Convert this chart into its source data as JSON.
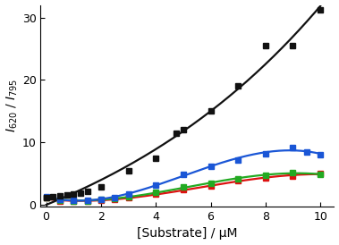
{
  "title": "",
  "xlabel": "[Substrate] / μM",
  "ylabel": "I$_{620}$ / I$_{795}$",
  "xlim": [
    -0.2,
    10.5
  ],
  "ylim": [
    -0.3,
    32
  ],
  "yticks": [
    0,
    10,
    20,
    30
  ],
  "xticks": [
    0,
    2,
    4,
    6,
    8,
    10
  ],
  "black_x": [
    0.0,
    0.25,
    0.5,
    0.75,
    1.0,
    1.25,
    1.5,
    2.0,
    3.0,
    4.0,
    4.75,
    5.0,
    6.0,
    7.0,
    8.0,
    9.0,
    10.0
  ],
  "black_y": [
    1.2,
    1.3,
    1.4,
    1.5,
    1.7,
    1.9,
    2.1,
    2.8,
    5.5,
    7.5,
    11.5,
    12.0,
    15.0,
    19.0,
    25.5,
    25.5,
    31.2
  ],
  "blue_x": [
    0.0,
    0.5,
    1.0,
    1.5,
    2.0,
    2.5,
    3.0,
    4.0,
    5.0,
    6.0,
    7.0,
    8.0,
    9.0,
    9.5,
    10.0
  ],
  "blue_y": [
    1.3,
    0.8,
    0.7,
    0.7,
    0.9,
    1.2,
    1.7,
    3.2,
    4.8,
    6.2,
    7.2,
    8.2,
    9.2,
    8.5,
    8.0
  ],
  "green_x": [
    0.0,
    0.5,
    1.0,
    1.5,
    2.0,
    2.5,
    3.0,
    4.0,
    5.0,
    6.0,
    7.0,
    8.0,
    9.0,
    10.0
  ],
  "green_y": [
    1.2,
    0.7,
    0.6,
    0.6,
    0.8,
    1.0,
    1.3,
    2.0,
    2.8,
    3.5,
    4.2,
    4.7,
    5.1,
    4.9
  ],
  "red_x": [
    0.0,
    0.5,
    1.0,
    1.5,
    2.0,
    2.5,
    3.0,
    4.0,
    5.0,
    6.0,
    7.0,
    8.0,
    9.0,
    10.0
  ],
  "red_y": [
    1.1,
    0.6,
    0.5,
    0.5,
    0.7,
    0.9,
    1.1,
    1.7,
    2.4,
    3.0,
    3.8,
    4.3,
    4.6,
    5.0
  ],
  "black_color": "#111111",
  "blue_color": "#1a56d6",
  "green_color": "#22aa22",
  "red_color": "#dd1111",
  "marker": "s",
  "markersize": 4.5,
  "linewidth": 1.6,
  "background_color": "#ffffff"
}
